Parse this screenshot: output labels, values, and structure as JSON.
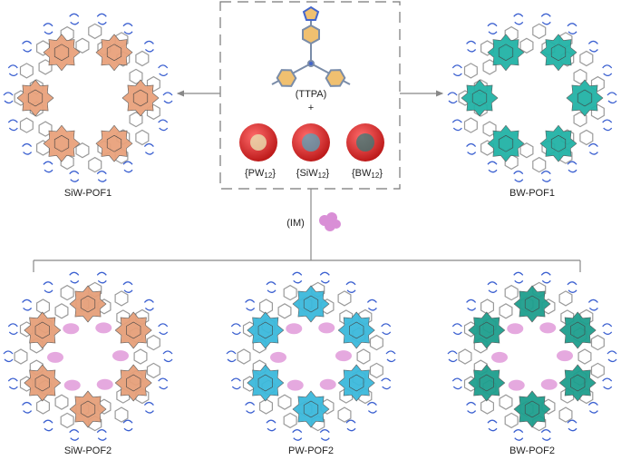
{
  "top": {
    "ttpa": "(TTPA)",
    "plus": "+",
    "clusters": [
      {
        "pre": "{PW",
        "sub": "12",
        "post": "}"
      },
      {
        "pre": "{SiW",
        "sub": "12",
        "post": "}"
      },
      {
        "pre": "{BW",
        "sub": "12",
        "post": "}"
      }
    ]
  },
  "products_1": [
    "SiW-POF1",
    "BW-POF1"
  ],
  "additive": "(IM)",
  "products_2": [
    "SiW-POF2",
    "PW-POF2",
    "BW-POF2"
  ]
}
